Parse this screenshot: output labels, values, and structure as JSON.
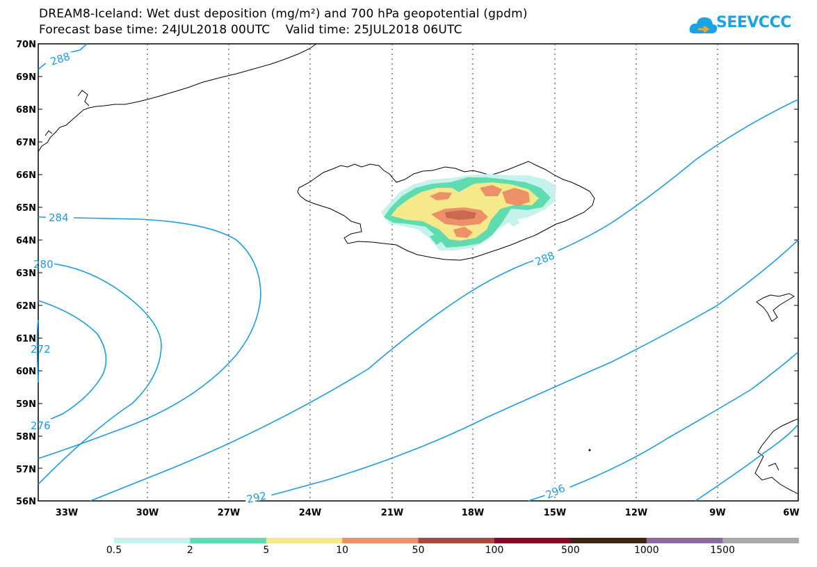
{
  "title": {
    "line1": "DREAM8-Iceland: Wet dust deposition (mg/m²) and 700 hPa geopotential (gpdm)",
    "line2": "Forecast base time: 24JUL2018 00UTC    Valid time: 25JUL2018 06UTC"
  },
  "logo": {
    "text": "SEEVCCC",
    "color": "#1aa3e6"
  },
  "axes": {
    "lat_labels": [
      "70N",
      "69N",
      "68N",
      "67N",
      "66N",
      "65N",
      "64N",
      "63N",
      "62N",
      "61N",
      "60N",
      "59N",
      "58N",
      "57N",
      "56N"
    ],
    "lon_labels": [
      "33W",
      "30W",
      "27W",
      "24W",
      "21W",
      "18W",
      "15W",
      "12W",
      "9W",
      "6W"
    ]
  },
  "contour_labels": {
    "c288_top": "288",
    "c284": "284",
    "c280": "280",
    "c272": "272",
    "c276": "276",
    "c288": "288",
    "c292": "292",
    "c296": "296"
  },
  "legend": {
    "colors": [
      "#c5f2ec",
      "#5edcb0",
      "#f6e98c",
      "#eb9068",
      "#a84b3c",
      "#820c28",
      "#3b2712",
      "#8a6c9a",
      "#aaaaaa"
    ],
    "labels": [
      "0.5",
      "2",
      "5",
      "10",
      "50",
      "100",
      "500",
      "1000",
      "1500"
    ]
  },
  "colors": {
    "contour": "#1a9be6",
    "coast": "#000000"
  }
}
